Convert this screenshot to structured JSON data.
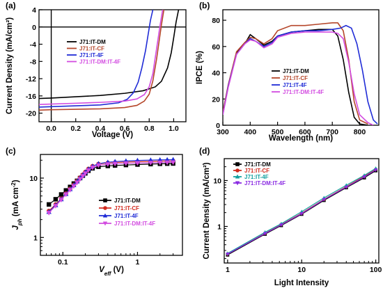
{
  "chart_data": [
    {
      "panel": "(a)",
      "type": "line",
      "xlabel": "Voltage (V)",
      "ylabel": "Current Density (mA/cm²)",
      "xlim": [
        -0.1,
        1.1
      ],
      "ylim": [
        -22,
        4
      ],
      "xticks": [
        0.0,
        0.2,
        0.4,
        0.6,
        0.8,
        1.0
      ],
      "xtick_labels": [
        "0.0",
        "0.2",
        "0.4",
        "0.6",
        "0.8",
        "1.0"
      ],
      "yticks": [
        -20,
        -16,
        -12,
        -8,
        -4,
        0,
        4
      ],
      "ytick_labels": [
        "-20",
        "-16",
        "-12",
        "-8",
        "-4",
        "0",
        "4"
      ],
      "legend_position": "upper-left",
      "series": [
        {
          "name": "J71:IT-DM",
          "color": "#000000",
          "x": [
            -0.1,
            0,
            0.2,
            0.4,
            0.6,
            0.75,
            0.85,
            0.9,
            0.95,
            0.98,
            1.0,
            1.02,
            1.04
          ],
          "y": [
            -16.6,
            -16.5,
            -16.2,
            -15.9,
            -15.4,
            -14.8,
            -13.9,
            -12.6,
            -9.5,
            -6.0,
            -2.5,
            1.2,
            4
          ]
        },
        {
          "name": "J71:IT-CF",
          "color": "#b5462a",
          "x": [
            -0.1,
            0,
            0.2,
            0.4,
            0.6,
            0.7,
            0.76,
            0.8,
            0.83,
            0.86,
            0.88,
            0.9,
            0.92
          ],
          "y": [
            -19.3,
            -19.2,
            -19.1,
            -19.0,
            -18.7,
            -18.2,
            -17.2,
            -15.6,
            -12.5,
            -7.5,
            -3.5,
            0.5,
            4
          ]
        },
        {
          "name": "J71:IT-4F",
          "color": "#1f2bd6",
          "x": [
            -0.1,
            0,
            0.2,
            0.4,
            0.55,
            0.62,
            0.67,
            0.71,
            0.74,
            0.77,
            0.79,
            0.81,
            0.83
          ],
          "y": [
            -18.6,
            -18.5,
            -18.3,
            -18.1,
            -17.6,
            -16.8,
            -15.3,
            -12.8,
            -9.5,
            -5.5,
            -2.0,
            1.5,
            4
          ]
        },
        {
          "name": "J71:IT-DM:IT-4F",
          "color": "#d24be0",
          "x": [
            -0.1,
            0,
            0.2,
            0.4,
            0.6,
            0.7,
            0.76,
            0.8,
            0.83,
            0.85,
            0.87,
            0.89,
            0.91
          ],
          "y": [
            -18.0,
            -17.9,
            -17.7,
            -17.5,
            -17.2,
            -16.7,
            -15.7,
            -13.9,
            -10.8,
            -7.0,
            -3.2,
            0.6,
            4
          ]
        }
      ]
    },
    {
      "panel": "(b)",
      "type": "line",
      "xlabel": "Wavelength (nm)",
      "ylabel": "IPCE (%)",
      "xlim": [
        300,
        870
      ],
      "ylim": [
        0,
        88
      ],
      "xticks": [
        300,
        400,
        500,
        600,
        700,
        800
      ],
      "xtick_labels": [
        "300",
        "400",
        "500",
        "600",
        "700",
        "800"
      ],
      "yticks": [
        0,
        20,
        40,
        60,
        80
      ],
      "ytick_labels": [
        "0",
        "20",
        "40",
        "60",
        "80"
      ],
      "legend_position": "lower-center",
      "series": [
        {
          "name": "J71:IT-DM",
          "color": "#000000",
          "x": [
            300,
            320,
            350,
            380,
            400,
            420,
            450,
            480,
            500,
            550,
            600,
            650,
            700,
            720,
            740,
            760,
            780,
            800,
            830
          ],
          "y": [
            9,
            30,
            55,
            62,
            69,
            66,
            61,
            64,
            68,
            71,
            72,
            73,
            73,
            68,
            50,
            25,
            6,
            1,
            0
          ]
        },
        {
          "name": "J71:IT-CF",
          "color": "#b5462a",
          "x": [
            300,
            320,
            350,
            380,
            400,
            420,
            450,
            480,
            500,
            550,
            600,
            650,
            700,
            720,
            740,
            760,
            780,
            800,
            830
          ],
          "y": [
            10,
            31,
            56,
            63,
            67,
            66,
            62,
            66,
            72,
            76,
            76,
            77,
            78,
            78,
            72,
            50,
            18,
            4,
            1
          ]
        },
        {
          "name": "J71:IT-4F",
          "color": "#1f2bd6",
          "x": [
            300,
            320,
            350,
            380,
            400,
            420,
            450,
            480,
            500,
            550,
            600,
            650,
            700,
            730,
            750,
            770,
            790,
            810,
            830,
            850,
            865
          ],
          "y": [
            8,
            30,
            54,
            62,
            66,
            64,
            60,
            63,
            68,
            71,
            72,
            72,
            73,
            74,
            76,
            74,
            62,
            42,
            18,
            4,
            1
          ]
        },
        {
          "name": "J71:IT-DM:IT-4F",
          "color": "#d24be0",
          "x": [
            300,
            320,
            350,
            380,
            400,
            420,
            450,
            480,
            500,
            550,
            600,
            650,
            700,
            720,
            740,
            760,
            780,
            800,
            830,
            850
          ],
          "y": [
            8,
            29,
            54,
            62,
            65,
            64,
            59,
            62,
            67,
            70,
            71,
            71,
            71,
            70,
            66,
            48,
            24,
            8,
            2,
            0
          ]
        }
      ]
    },
    {
      "panel": "(c)",
      "type": "scatter",
      "xlabel_main": "V",
      "xlabel_sub": "eff",
      "xlabel_unit": " (V)",
      "ylabel_main": "J",
      "ylabel_sub": "ph",
      "ylabel_unit": " (mA cm",
      "ylabel_sup": "-2",
      "ylabel_close": ")",
      "log_x": true,
      "log_y": true,
      "xlim": [
        0.05,
        4
      ],
      "ylim": [
        0.5,
        25
      ],
      "xticks": [
        0.1,
        1
      ],
      "xtick_labels": [
        "0.1",
        "1"
      ],
      "yticks": [
        1,
        10
      ],
      "ytick_labels": [
        "1",
        "10"
      ],
      "legend_position": "center-right",
      "series": [
        {
          "name": "J71:IT-DM",
          "color": "#000000",
          "marker": "square",
          "x": [
            0.065,
            0.08,
            0.095,
            0.11,
            0.125,
            0.14,
            0.155,
            0.17,
            0.185,
            0.2,
            0.22,
            0.25,
            0.3,
            0.4,
            0.5,
            0.7,
            1.0,
            1.5,
            2.0,
            2.5,
            3.0
          ],
          "y": [
            3.6,
            4.4,
            5.3,
            6.2,
            7.1,
            8.1,
            9.0,
            10.0,
            11.0,
            12.0,
            13.3,
            14.6,
            15.5,
            16.0,
            16.3,
            16.6,
            16.9,
            17.2,
            17.4,
            17.5,
            17.6
          ]
        },
        {
          "name": "J71:IT-CF",
          "color": "#d22a1e",
          "marker": "circle",
          "x": [
            0.065,
            0.08,
            0.095,
            0.11,
            0.125,
            0.14,
            0.155,
            0.17,
            0.185,
            0.2,
            0.22,
            0.25,
            0.3,
            0.4,
            0.5,
            0.7,
            1.0,
            1.5,
            2.0,
            2.5,
            3.0
          ],
          "y": [
            2.8,
            3.6,
            4.5,
            5.5,
            6.6,
            7.7,
            8.9,
            10.2,
            11.4,
            12.7,
            14.3,
            15.9,
            17.3,
            18.0,
            18.3,
            18.6,
            18.9,
            19.1,
            19.3,
            19.4,
            19.5
          ]
        },
        {
          "name": "J71:IT-4F",
          "color": "#1f2bd6",
          "marker": "triangle-up",
          "x": [
            0.065,
            0.08,
            0.095,
            0.11,
            0.125,
            0.14,
            0.155,
            0.17,
            0.185,
            0.2,
            0.22,
            0.25,
            0.3,
            0.4,
            0.5,
            0.7,
            1.0,
            1.5,
            2.0,
            2.5,
            3.0
          ],
          "y": [
            2.7,
            3.5,
            4.4,
            5.4,
            6.5,
            7.6,
            8.8,
            10.1,
            11.3,
            12.6,
            14.2,
            15.8,
            17.5,
            18.5,
            19.0,
            19.4,
            19.8,
            20.1,
            20.3,
            20.4,
            20.5
          ]
        },
        {
          "name": "J71:IT-DM:IT-4F",
          "color": "#d24be0",
          "marker": "triangle-down",
          "x": [
            0.065,
            0.08,
            0.095,
            0.11,
            0.125,
            0.14,
            0.155,
            0.17,
            0.185,
            0.2,
            0.22,
            0.25,
            0.3,
            0.4,
            0.5,
            0.7,
            1.0,
            1.5,
            2.0,
            2.5,
            3.0
          ],
          "y": [
            2.6,
            3.4,
            4.3,
            5.3,
            6.3,
            7.3,
            8.4,
            9.6,
            10.8,
            12.0,
            13.5,
            15.0,
            16.4,
            17.1,
            17.4,
            17.7,
            17.9,
            18.1,
            18.2,
            18.3,
            18.4
          ]
        }
      ]
    },
    {
      "panel": "(d)",
      "type": "scatter",
      "xlabel": "Light Intensity",
      "ylabel": "Current Density (mA/cm²)",
      "log_x": true,
      "log_y": true,
      "xlim": [
        0.9,
        110
      ],
      "ylim": [
        0.16,
        30
      ],
      "xticks": [
        1,
        10,
        100
      ],
      "xtick_labels": [
        "1",
        "10",
        "100"
      ],
      "yticks": [
        1,
        10
      ],
      "ytick_labels": [
        "1",
        "10"
      ],
      "legend_position": "upper-left",
      "series": [
        {
          "name": "J71:IT-DM",
          "color": "#000000",
          "marker": "square",
          "x": [
            1,
            3.2,
            5.3,
            10,
            20,
            40,
            70,
            100
          ],
          "y": [
            0.24,
            0.68,
            1.05,
            1.85,
            3.7,
            7.0,
            11.5,
            16.4
          ]
        },
        {
          "name": "J71:IT-CF",
          "color": "#d22a1e",
          "marker": "circle",
          "x": [
            1,
            3.2,
            5.3,
            10,
            20,
            40,
            70,
            100
          ],
          "y": [
            0.25,
            0.71,
            1.1,
            1.95,
            3.9,
            7.4,
            12.4,
            17.5
          ]
        },
        {
          "name": "J71:IT-4F",
          "color": "#12a0a0",
          "marker": "triangle-up",
          "x": [
            1,
            3.2,
            5.3,
            10,
            20,
            40,
            70,
            100
          ],
          "y": [
            0.26,
            0.75,
            1.15,
            2.1,
            4.2,
            7.9,
            13.0,
            18.4
          ]
        },
        {
          "name": "J71:IT-DM:IT-4F",
          "color": "#8a2be2",
          "marker": "triangle-down",
          "x": [
            1,
            3.2,
            5.3,
            10,
            20,
            40,
            70,
            100
          ],
          "y": [
            0.25,
            0.7,
            1.08,
            1.9,
            3.85,
            7.2,
            12.0,
            17.0
          ]
        }
      ]
    }
  ]
}
